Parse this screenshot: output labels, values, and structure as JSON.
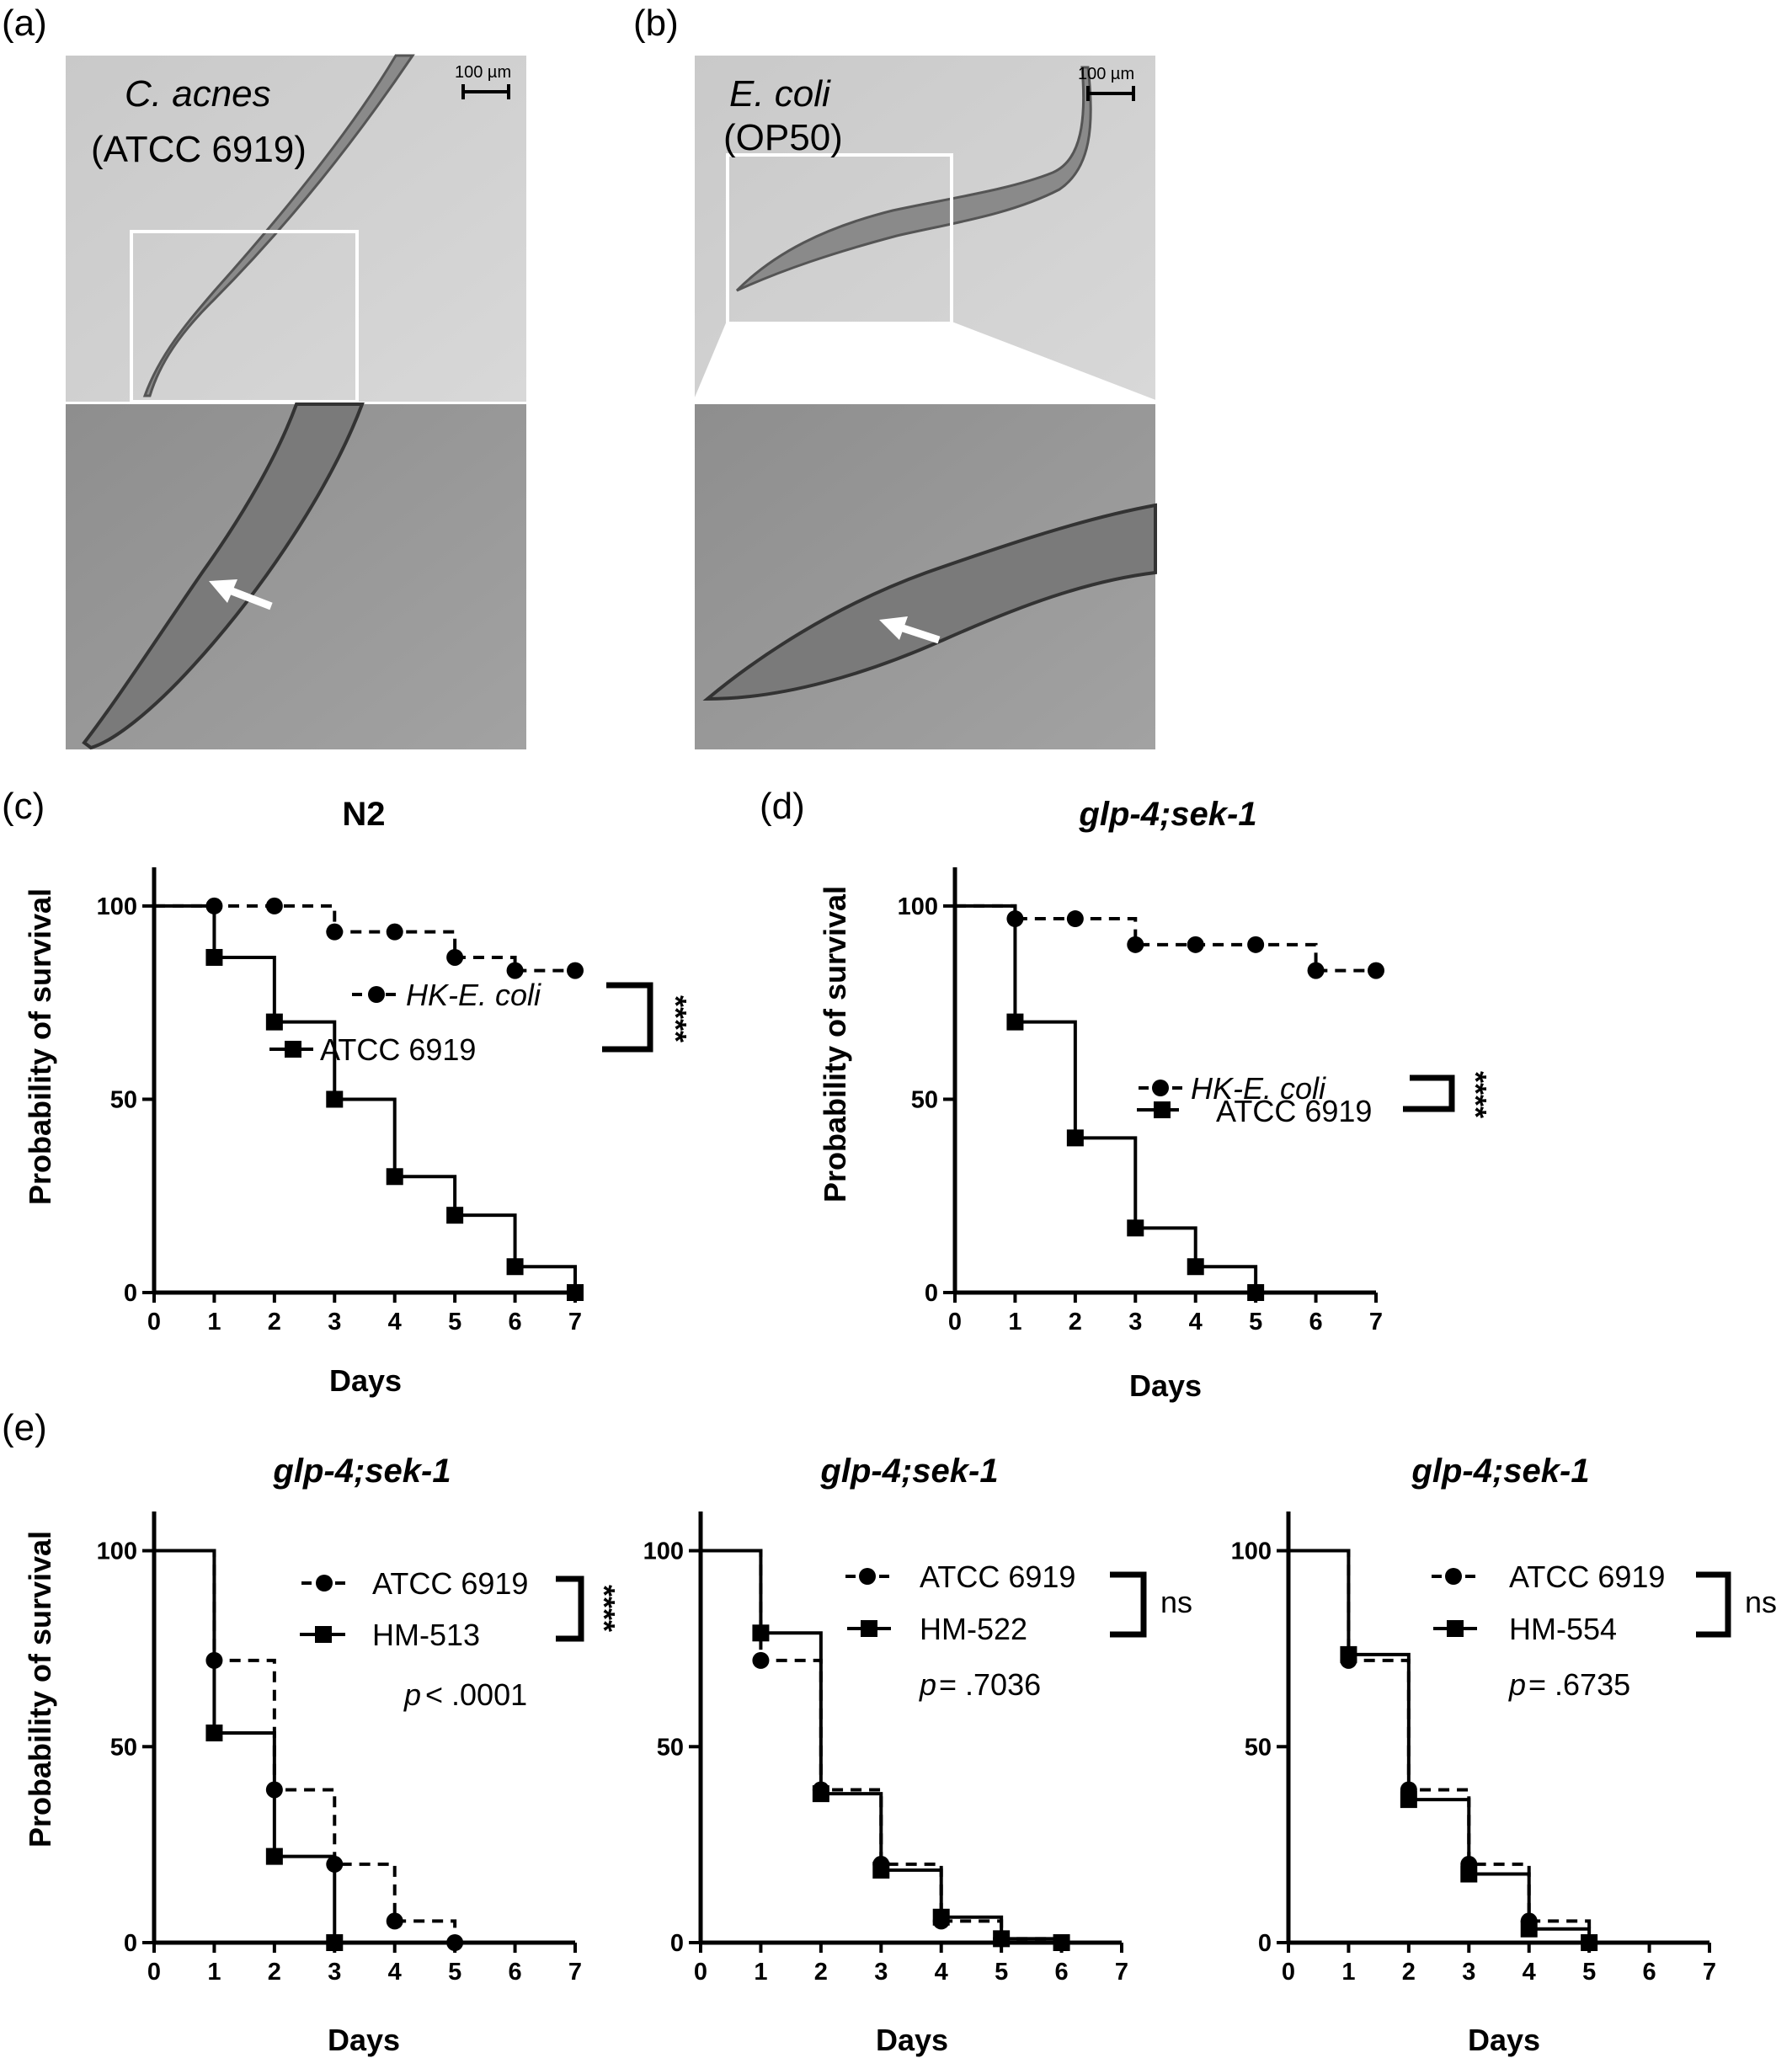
{
  "micrographs": [
    {
      "panel_label": "(a)",
      "title_line1": "C. acnes",
      "title_line2": "(ATCC 6919)",
      "scale_bar": "100 µm"
    },
    {
      "panel_label": "(b)",
      "title_line1": "E. coli",
      "title_line2": "(OP50)",
      "scale_bar": "100 µm"
    }
  ],
  "chart_data": [
    {
      "panel_label": "(c)",
      "type": "line",
      "title": "N2",
      "title_italic": false,
      "xlabel": "Days",
      "ylabel": "Probability of survival",
      "xlim": [
        0,
        7
      ],
      "ylim": [
        0,
        110
      ],
      "xticks": [
        0,
        1,
        2,
        3,
        4,
        5,
        6,
        7
      ],
      "yticks": [
        0,
        50,
        100
      ],
      "step": true,
      "series": [
        {
          "name": "HK-E. coli",
          "italic": true,
          "style": "dashed",
          "marker": "circle",
          "x": [
            0,
            1,
            2,
            3,
            4,
            5,
            6,
            7
          ],
          "y": [
            100,
            100,
            100,
            93.3,
            93.3,
            86.7,
            83.3,
            83.3
          ]
        },
        {
          "name": "ATCC 6919",
          "italic": false,
          "style": "solid",
          "marker": "square",
          "x": [
            0,
            1,
            2,
            3,
            4,
            5,
            6,
            7
          ],
          "y": [
            100,
            86.7,
            70,
            50,
            30,
            20,
            6.7,
            0
          ]
        }
      ],
      "significance": "****",
      "p_value": ""
    },
    {
      "panel_label": "(d)",
      "type": "line",
      "title": "glp-4;sek-1",
      "title_italic": true,
      "xlabel": "Days",
      "ylabel": "Probability of survival",
      "xlim": [
        0,
        7
      ],
      "ylim": [
        0,
        110
      ],
      "xticks": [
        0,
        1,
        2,
        3,
        4,
        5,
        6,
        7
      ],
      "yticks": [
        0,
        50,
        100
      ],
      "step": true,
      "series": [
        {
          "name": "HK-E. coli",
          "italic": true,
          "style": "dashed",
          "marker": "circle",
          "x": [
            0,
            1,
            2,
            3,
            4,
            5,
            6,
            7
          ],
          "y": [
            100,
            96.7,
            96.7,
            90,
            90,
            90,
            83.3,
            83.3
          ]
        },
        {
          "name": "ATCC 6919",
          "italic": false,
          "style": "solid",
          "marker": "square",
          "x": [
            0,
            1,
            2,
            3,
            4,
            5
          ],
          "y": [
            100,
            70,
            40,
            16.7,
            6.7,
            0
          ]
        }
      ],
      "significance": "****",
      "p_value": ""
    },
    {
      "panel_label": "(e)",
      "type": "line",
      "title": "glp-4;sek-1",
      "title_italic": true,
      "xlabel": "Days",
      "ylabel": "Probability of survival",
      "xlim": [
        0,
        7
      ],
      "ylim": [
        0,
        110
      ],
      "xticks": [
        0,
        1,
        2,
        3,
        4,
        5,
        6,
        7
      ],
      "yticks": [
        0,
        50,
        100
      ],
      "step": true,
      "series": [
        {
          "name": "ATCC 6919",
          "italic": false,
          "style": "dashed",
          "marker": "circle",
          "x": [
            0,
            1,
            2,
            3,
            4,
            5
          ],
          "y": [
            100,
            72,
            39,
            20,
            5.5,
            0
          ]
        },
        {
          "name": "HM-513",
          "italic": false,
          "style": "solid",
          "marker": "square",
          "x": [
            0,
            1,
            2,
            3
          ],
          "y": [
            100,
            53.5,
            22,
            0
          ]
        }
      ],
      "significance": "****",
      "p_value": "< .0001"
    },
    {
      "panel_label": "",
      "type": "line",
      "title": "glp-4;sek-1",
      "title_italic": true,
      "xlabel": "Days",
      "ylabel": "",
      "xlim": [
        0,
        7
      ],
      "ylim": [
        0,
        110
      ],
      "xticks": [
        0,
        1,
        2,
        3,
        4,
        5,
        6,
        7
      ],
      "yticks": [
        0,
        50,
        100
      ],
      "step": true,
      "series": [
        {
          "name": "ATCC 6919",
          "italic": false,
          "style": "dashed",
          "marker": "circle",
          "x": [
            0,
            1,
            2,
            3,
            4,
            5,
            6
          ],
          "y": [
            100,
            72,
            39,
            20,
            5.5,
            1,
            0
          ]
        },
        {
          "name": "HM-522",
          "italic": false,
          "style": "solid",
          "marker": "square",
          "x": [
            0,
            1,
            2,
            3,
            4,
            5,
            6
          ],
          "y": [
            100,
            79,
            38,
            18.5,
            6.5,
            1,
            0
          ]
        }
      ],
      "significance": "ns",
      "p_value": "= .7036"
    },
    {
      "panel_label": "",
      "type": "line",
      "title": "glp-4;sek-1",
      "title_italic": true,
      "xlabel": "Days",
      "ylabel": "",
      "xlim": [
        0,
        7
      ],
      "ylim": [
        0,
        110
      ],
      "xticks": [
        0,
        1,
        2,
        3,
        4,
        5,
        6,
        7
      ],
      "yticks": [
        0,
        50,
        100
      ],
      "step": true,
      "series": [
        {
          "name": "ATCC 6919",
          "italic": false,
          "style": "dashed",
          "marker": "circle",
          "x": [
            0,
            1,
            2,
            3,
            4,
            5
          ],
          "y": [
            100,
            72,
            39,
            20,
            5.5,
            0
          ]
        },
        {
          "name": "HM-554",
          "italic": false,
          "style": "solid",
          "marker": "square",
          "x": [
            0,
            1,
            2,
            3,
            4,
            5
          ],
          "y": [
            100,
            73.5,
            36.5,
            17.5,
            3.5,
            0
          ]
        }
      ],
      "significance": "ns",
      "p_value": "= .6735"
    }
  ]
}
